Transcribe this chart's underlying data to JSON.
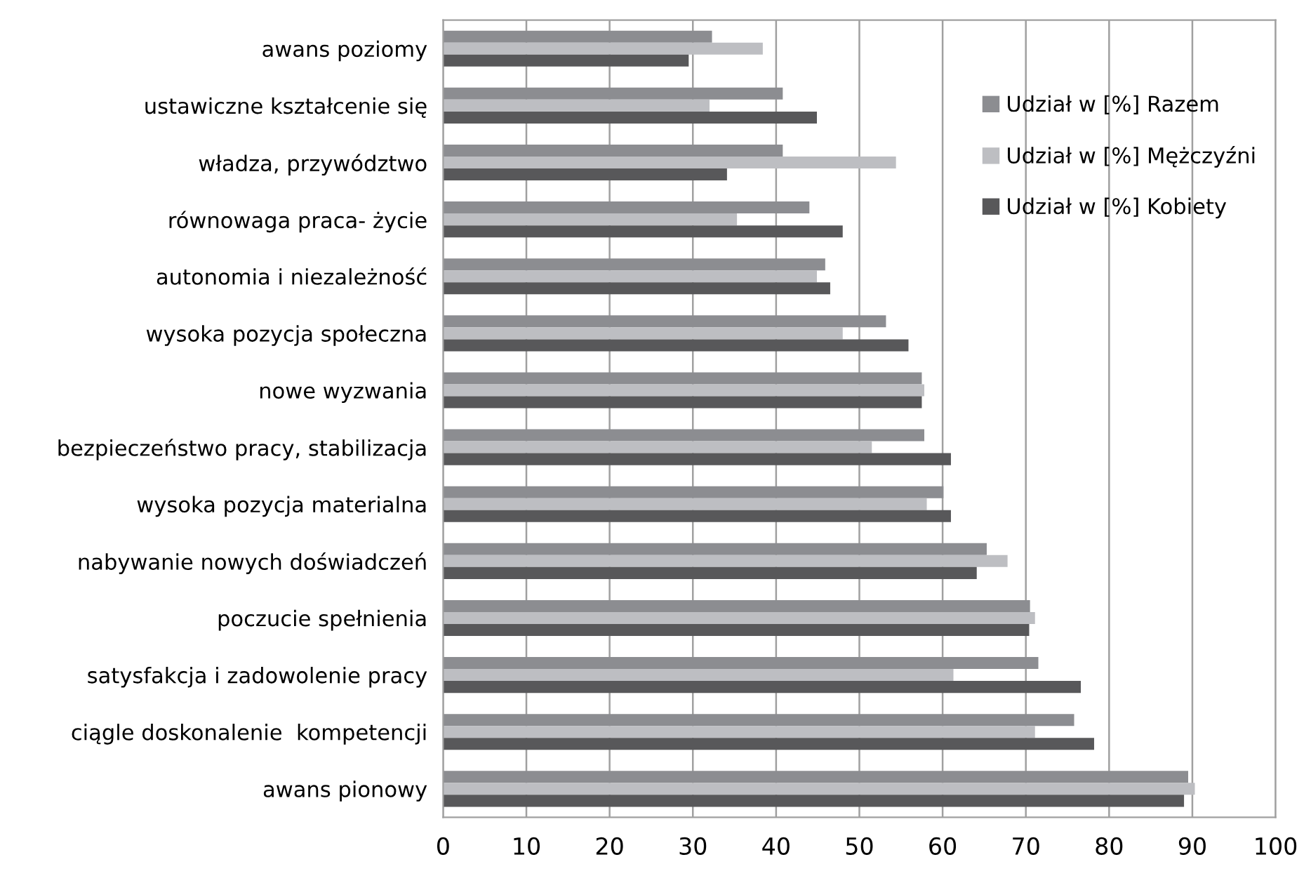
{
  "chart_data": {
    "type": "bar",
    "orientation": "horizontal",
    "categories": [
      "awans poziomy",
      "ustawiczne kształcenie się",
      "władza, przywództwo",
      "równowaga praca- życie",
      "autonomia i niezależność",
      "wysoka pozycja społeczna",
      "nowe wyzwania",
      "bezpieczeństwo pracy, stabilizacja",
      "wysoka pozycja materialna",
      "nabywanie nowych doświadczeń",
      "poczucie spełnienia",
      "satysfakcja i zadowolenie pracy",
      "ciągle doskonalenie  kompetencji",
      "awans pionowy"
    ],
    "series": [
      {
        "name": "Udział w [%] Razem",
        "color": "#8c8d91",
        "values": [
          32.3,
          40.8,
          40.8,
          44.0,
          45.9,
          53.2,
          57.5,
          57.8,
          60.1,
          65.3,
          70.5,
          71.5,
          75.8,
          89.5
        ]
      },
      {
        "name": "Udział w [%] Mężczyźni",
        "color": "#bdbec2",
        "values": [
          38.4,
          32.0,
          54.4,
          35.3,
          44.9,
          48.0,
          57.8,
          51.5,
          58.1,
          67.8,
          71.1,
          61.3,
          71.1,
          90.3
        ]
      },
      {
        "name": "Udział w [%] Kobiety",
        "color": "#58585a",
        "values": [
          29.5,
          44.9,
          34.1,
          48.0,
          46.5,
          55.9,
          57.5,
          61.0,
          61.0,
          64.1,
          70.4,
          76.6,
          78.2,
          89.0
        ]
      }
    ],
    "xlim": [
      0,
      100
    ],
    "xticks": [
      0,
      10,
      20,
      30,
      40,
      50,
      60,
      70,
      80,
      90,
      100
    ],
    "grid": "x",
    "legend": "top right"
  }
}
